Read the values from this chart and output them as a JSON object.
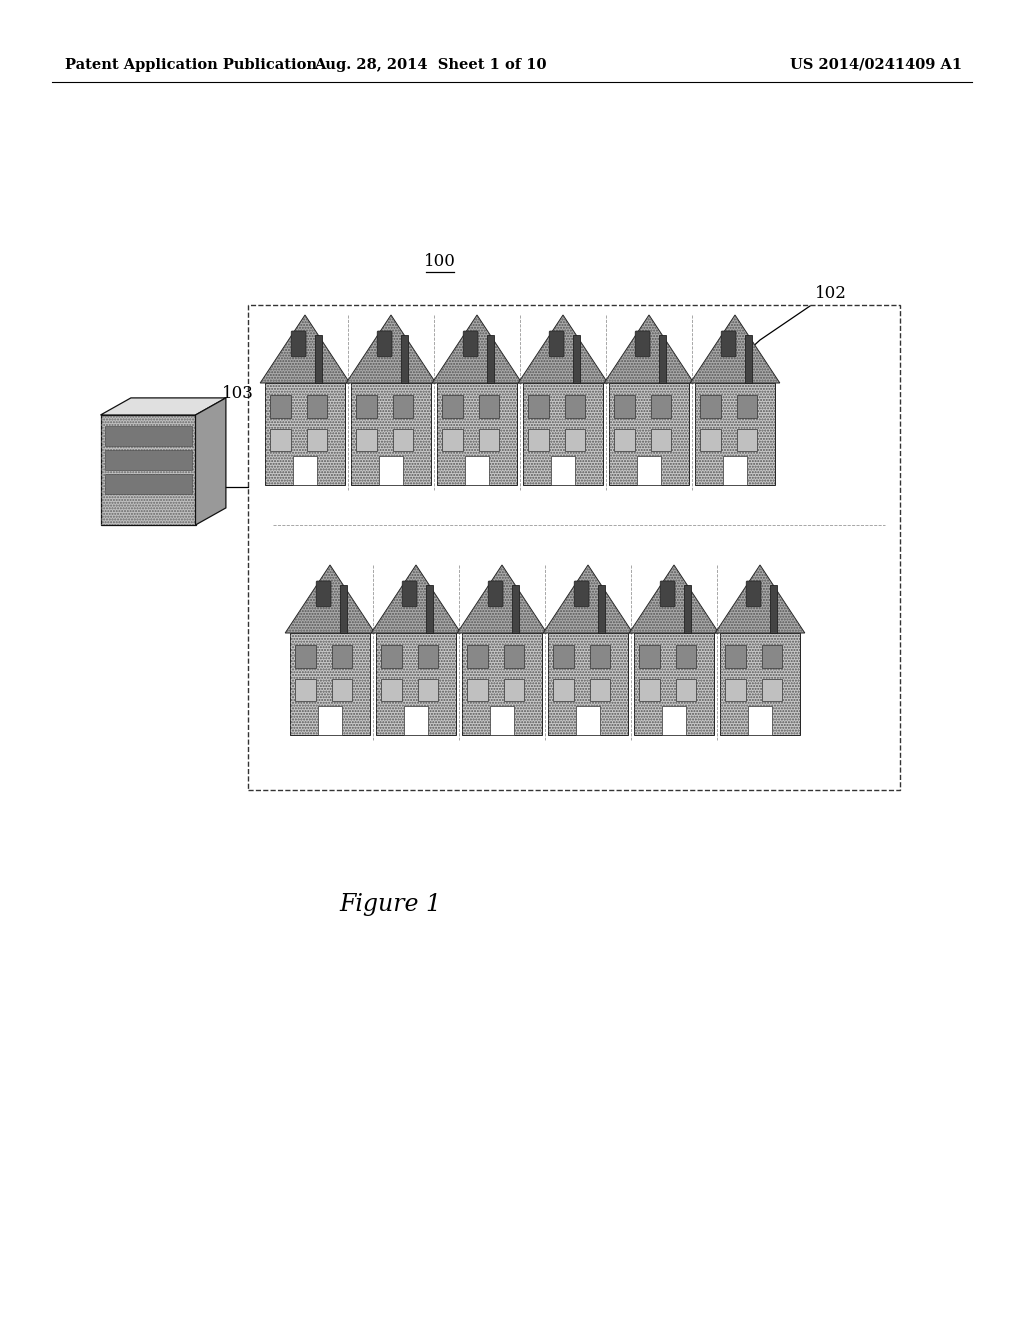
{
  "background_color": "#ffffff",
  "header_left": "Patent Application Publication",
  "header_center": "Aug. 28, 2014  Sheet 1 of 10",
  "header_right": "US 2014/0241409 A1",
  "label_100": "100",
  "label_102": "102",
  "label_103": "103",
  "figure_caption": "Figure 1",
  "header_fontsize": 10.5,
  "label_fontsize": 12,
  "caption_fontsize": 17,
  "fig_width": 10.24,
  "fig_height": 13.2,
  "dpi": 100
}
